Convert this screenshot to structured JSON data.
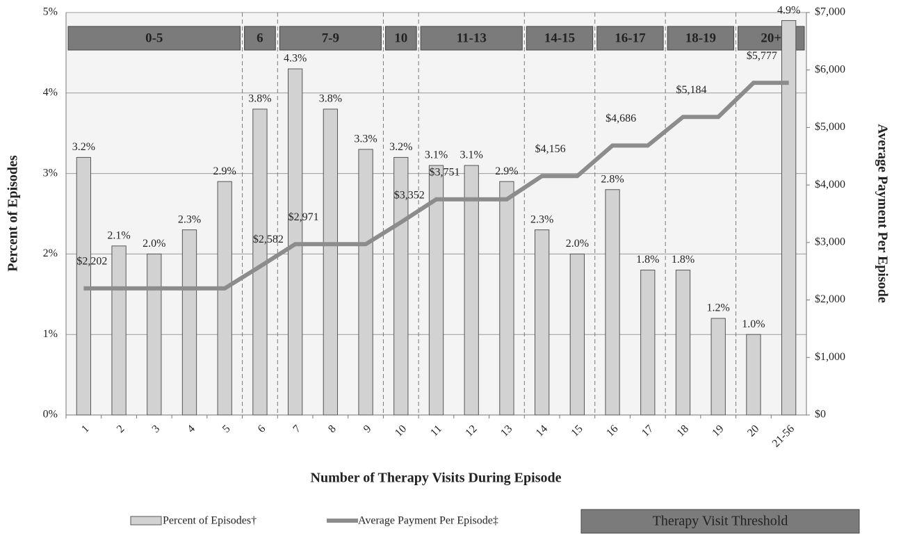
{
  "chart_data": {
    "type": "bar",
    "x_label": "Number of Therapy Visits During Episode",
    "y_label": "Percent of Episodes",
    "y2_label": "Average Payment Per Episode",
    "categories": [
      "1",
      "2",
      "3",
      "4",
      "5",
      "6",
      "7",
      "8",
      "9",
      "10",
      "11",
      "12",
      "13",
      "14",
      "15",
      "16",
      "17",
      "18",
      "19",
      "20",
      "21-56"
    ],
    "series": [
      {
        "name": "Percent of Episodes†",
        "type": "bar",
        "color": "#d2d2d2",
        "values": [
          3.2,
          2.1,
          2.0,
          2.3,
          2.9,
          3.8,
          4.3,
          3.8,
          3.3,
          3.2,
          3.1,
          3.1,
          2.9,
          2.3,
          2.0,
          2.8,
          1.8,
          1.8,
          1.2,
          1.0,
          4.9
        ],
        "value_labels": [
          "3.2%",
          "2.1%",
          "2.0%",
          "2.3%",
          "2.9%",
          "3.8%",
          "4.3%",
          "3.8%",
          "3.3%",
          "3.2%",
          "3.1%",
          "3.1%",
          "2.9%",
          "2.3%",
          "2.0%",
          "2.8%",
          "1.8%",
          "1.8%",
          "1.2%",
          "1.0%",
          "4.9%"
        ]
      },
      {
        "name": "Average Payment Per Episode‡",
        "type": "line",
        "axis": "y2",
        "color": "#8c8c8c",
        "values": [
          2202,
          2202,
          2202,
          2202,
          2202,
          2582,
          2971,
          2971,
          2971,
          3352,
          3751,
          3751,
          3751,
          4156,
          4156,
          4686,
          4686,
          5184,
          5184,
          5777,
          5777
        ],
        "value_labels": [
          "$2,202",
          null,
          null,
          null,
          null,
          "$2,582",
          "$2,971",
          null,
          null,
          "$3,352",
          "$3,751",
          null,
          null,
          "$4,156",
          null,
          "$4,686",
          null,
          "$5,184",
          null,
          "$5,777",
          null
        ]
      }
    ],
    "threshold_name": "Therapy Visit Threshold",
    "threshold_color": "#7b7b7b",
    "threshold_groups": [
      {
        "label": "0-5",
        "count": 5
      },
      {
        "label": "6",
        "count": 1
      },
      {
        "label": "7-9",
        "count": 3
      },
      {
        "label": "10",
        "count": 1
      },
      {
        "label": "11-13",
        "count": 3
      },
      {
        "label": "14-15",
        "count": 2
      },
      {
        "label": "16-17",
        "count": 2
      },
      {
        "label": "18-19",
        "count": 2
      },
      {
        "label": "20+",
        "count": 2
      }
    ],
    "ylim": [
      0,
      5
    ],
    "yticks": [
      {
        "value": 0,
        "label": "0%"
      },
      {
        "value": 1,
        "label": "1%"
      },
      {
        "value": 2,
        "label": "2%"
      },
      {
        "value": 3,
        "label": "3%"
      },
      {
        "value": 4,
        "label": "4%"
      },
      {
        "value": 5,
        "label": "5%"
      }
    ],
    "y2lim": [
      0,
      7000
    ],
    "y2ticks": [
      {
        "value": 0,
        "label": "$0"
      },
      {
        "value": 1000,
        "label": "$1,000"
      },
      {
        "value": 2000,
        "label": "$2,000"
      },
      {
        "value": 3000,
        "label": "$3,000"
      },
      {
        "value": 4000,
        "label": "$4,000"
      },
      {
        "value": 5000,
        "label": "$5,000"
      },
      {
        "value": 6000,
        "label": "$6,000"
      },
      {
        "value": 7000,
        "label": "$7,000"
      }
    ],
    "grid": true
  }
}
